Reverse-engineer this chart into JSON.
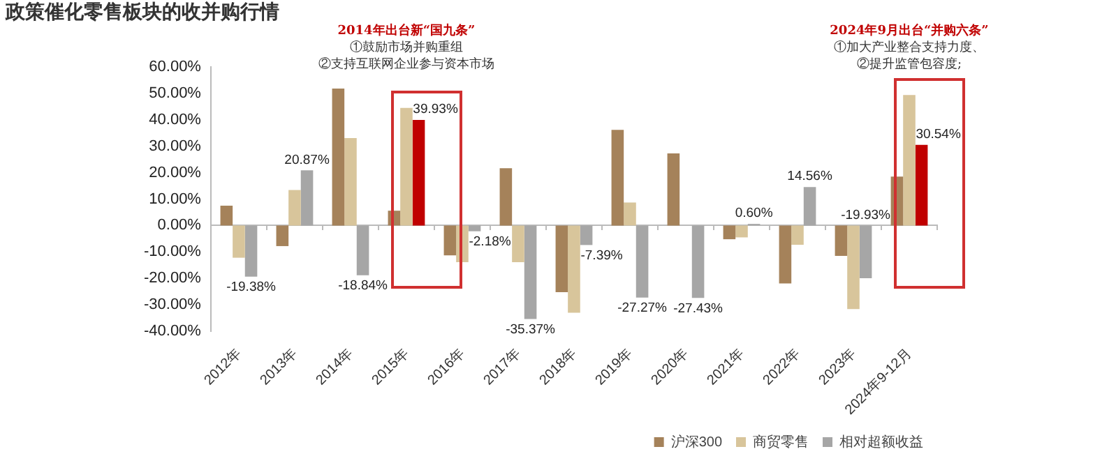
{
  "chart_data": {
    "type": "bar",
    "title": "政策催化零售板块的收并购行情",
    "categories": [
      "2012年",
      "2013年",
      "2014年",
      "2015年",
      "2016年",
      "2017年",
      "2018年",
      "2019年",
      "2020年",
      "2021年",
      "2022年",
      "2023年",
      "2024年9-12月"
    ],
    "series": [
      {
        "name": "沪深300",
        "color": "#a5825a",
        "values": [
          7.5,
          -7.8,
          51.8,
          5.6,
          -11.3,
          21.7,
          -25.2,
          36.2,
          27.3,
          -5.2,
          -21.9,
          -11.5,
          18.5
        ]
      },
      {
        "name": "商贸零售",
        "color": "#d8c59b",
        "values": [
          -12.2,
          13.4,
          33.1,
          44.5,
          -13.9,
          -13.9,
          -33.0,
          8.7,
          0,
          -4.5,
          -7.3,
          -31.6,
          49.4
        ]
      },
      {
        "name": "相对超额收益",
        "color": "#a6a6a6",
        "colors": [
          "#a6a6a6",
          "#a6a6a6",
          "#a6a6a6",
          "#c00000",
          "#a6a6a6",
          "#a6a6a6",
          "#a6a6a6",
          "#a6a6a6",
          "#a6a6a6",
          "#a6a6a6",
          "#a6a6a6",
          "#a6a6a6",
          "#c00000"
        ],
        "values": [
          -19.38,
          20.87,
          -18.84,
          39.93,
          -2.18,
          -35.37,
          -7.39,
          -27.27,
          -27.43,
          0.6,
          14.56,
          -19.93,
          30.54
        ],
        "value_labels": [
          "-19.38%",
          "20.87%",
          "-18.84%",
          "39.93%",
          "-2.18%",
          "-35.37%",
          "-7.39%",
          "-27.27%",
          "-27.43%",
          "0.60%",
          "14.56%",
          "-19.93%",
          "30.54%"
        ]
      }
    ],
    "ylim": [
      -40,
      60
    ],
    "yticks": [
      {
        "value": -40,
        "label": "-40.00%"
      },
      {
        "value": -30,
        "label": "-30.00%"
      },
      {
        "value": -20,
        "label": "-20.00%"
      },
      {
        "value": -10,
        "label": "-10.00%"
      },
      {
        "value": 0,
        "label": "0.00%"
      },
      {
        "value": 10,
        "label": "10.00%"
      },
      {
        "value": 20,
        "label": "20.00%"
      },
      {
        "value": 30,
        "label": "30.00%"
      },
      {
        "value": 40,
        "label": "40.00%"
      },
      {
        "value": 50,
        "label": "50.00%"
      },
      {
        "value": 60,
        "label": "60.00%"
      }
    ],
    "legend": "bottom",
    "annotations": [
      "2014年出台新“国九条”",
      "①鼓励市场并购重组",
      "②支持互联网企业参与资本市场",
      "2024年9月出台“并购六条”",
      "①加大产业整合支持力度、",
      "②提升监管包容度;"
    ]
  }
}
